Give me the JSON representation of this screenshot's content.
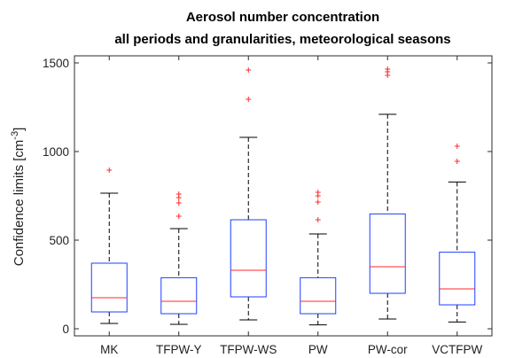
{
  "chart_data": {
    "type": "box",
    "title": "Aerosol number concentration",
    "subtitle": "all periods and granularities, meteorological seasons",
    "xlabel": "",
    "ylabel_prefix": "Confidence limits [cm",
    "ylabel_superscript": "-3",
    "ylabel_suffix": "]",
    "ylim": [
      -40,
      1540
    ],
    "yticks": [
      0,
      500,
      1000,
      1500
    ],
    "ytick_labels": [
      "0",
      "500",
      "1000",
      "1500"
    ],
    "grid": false,
    "colors": {
      "box": "#1f3fff",
      "median": "#ff2a2a",
      "whisker": "#000000",
      "outlier": "#ff2a2a",
      "axis": "#2b2b2b"
    },
    "categories": [
      "MK",
      "TFPW-Y",
      "TFPW-WS",
      "PW",
      "PW-cor",
      "VCTFPW"
    ],
    "boxes": [
      {
        "min": 30,
        "q1": 95,
        "median": 175,
        "q3": 370,
        "max": 765,
        "outliers": [
          895
        ]
      },
      {
        "min": 25,
        "q1": 85,
        "median": 155,
        "q3": 288,
        "max": 565,
        "outliers": [
          635,
          710,
          740,
          760
        ]
      },
      {
        "min": 50,
        "q1": 180,
        "median": 330,
        "q3": 615,
        "max": 1080,
        "outliers": [
          1295,
          1460
        ]
      },
      {
        "min": 22,
        "q1": 85,
        "median": 155,
        "q3": 288,
        "max": 535,
        "outliers": [
          615,
          715,
          750,
          770
        ]
      },
      {
        "min": 55,
        "q1": 200,
        "median": 350,
        "q3": 648,
        "max": 1210,
        "outliers": [
          1430,
          1450,
          1465
        ]
      },
      {
        "min": 38,
        "q1": 135,
        "median": 225,
        "q3": 432,
        "max": 828,
        "outliers": [
          945,
          1030
        ]
      }
    ]
  }
}
